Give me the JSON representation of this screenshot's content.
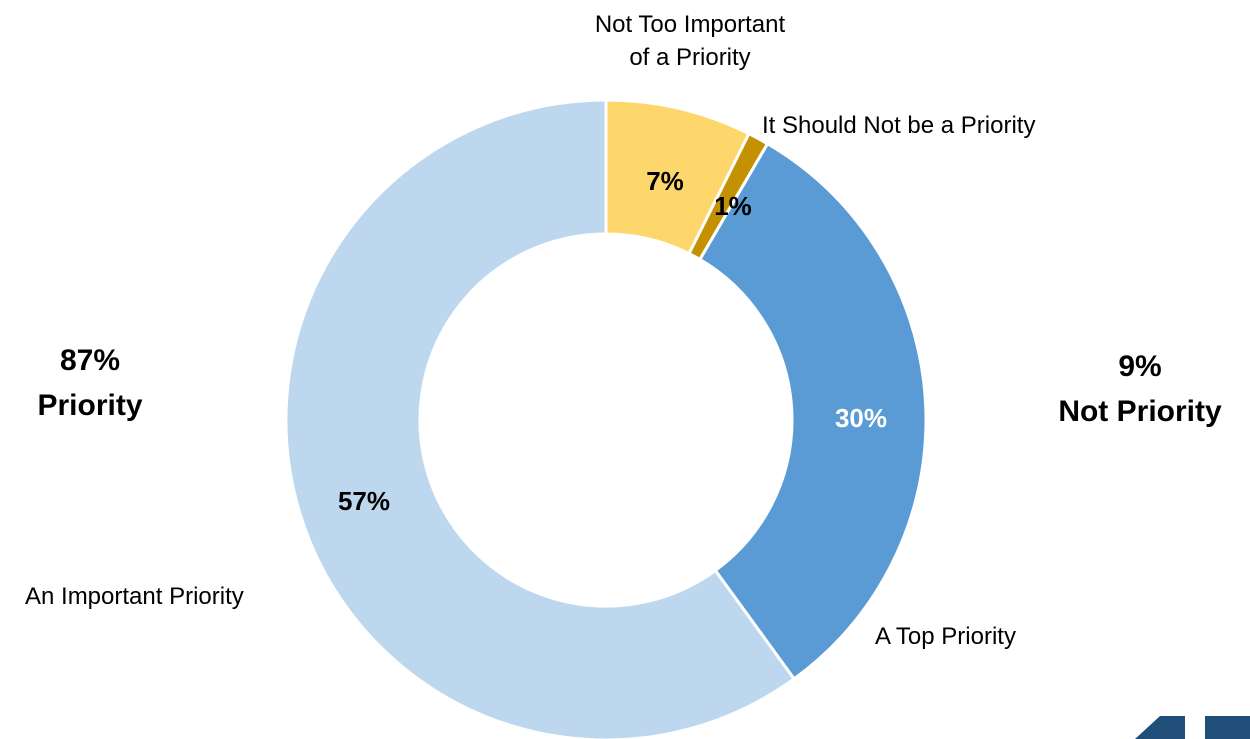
{
  "chart_data": {
    "type": "pie",
    "donut": true,
    "slices": [
      {
        "label": "Not Too Important of a Priority",
        "label_lines": [
          "Not Too Important",
          "of a Priority"
        ],
        "value": 7,
        "display": "7%",
        "color": "#fdd76b",
        "pct_color": "#000000"
      },
      {
        "label": "It Should Not be a Priority",
        "label_lines": [
          "It Should Not be a Priority"
        ],
        "value": 1,
        "display": "1%",
        "color": "#c39101",
        "pct_color": "#000000"
      },
      {
        "label": "A Top Priority",
        "label_lines": [
          "A Top Priority"
        ],
        "value": 30,
        "display": "30%",
        "color": "#5b9bd5",
        "pct_color": "#ffffff"
      },
      {
        "label": "An Important Priority",
        "label_lines": [
          "An Important Priority"
        ],
        "value": 57,
        "display": "57%",
        "color": "#bdd7ee",
        "pct_color": "#000000"
      }
    ],
    "groups": [
      {
        "side": "left",
        "lines": [
          "87%",
          "Priority"
        ]
      },
      {
        "side": "right",
        "lines": [
          "9%",
          "Not Priority"
        ]
      }
    ]
  }
}
